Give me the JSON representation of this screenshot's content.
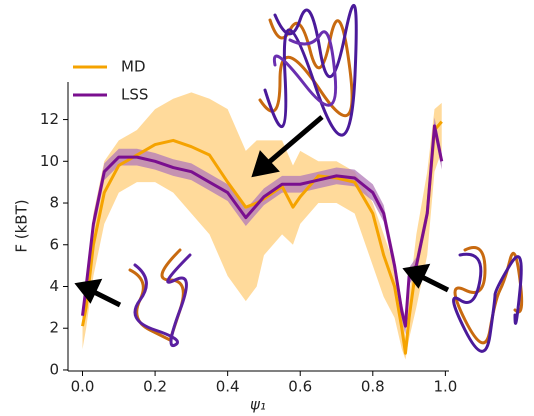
{
  "chart_data": {
    "type": "line",
    "x_label": "ψ₁",
    "y_label": "F (kBT)",
    "x": [
      0,
      0.01,
      0.03,
      0.06,
      0.1,
      0.15,
      0.2,
      0.25,
      0.3,
      0.35,
      0.4,
      0.45,
      0.48,
      0.5,
      0.55,
      0.58,
      0.6,
      0.65,
      0.7,
      0.75,
      0.8,
      0.83,
      0.86,
      0.88,
      0.89,
      0.9,
      0.92,
      0.95,
      0.97,
      0.99
    ],
    "series": [
      {
        "name": "MD",
        "color": "#f5a300",
        "band_color": "#ffd38a",
        "values": [
          2.1,
          3,
          6,
          8.5,
          9.8,
          10.3,
          10.8,
          11,
          10.7,
          10.3,
          9,
          7.8,
          8,
          8.2,
          8.8,
          7.8,
          8.3,
          9.3,
          9.2,
          9,
          7.5,
          5.5,
          4,
          2,
          0.8,
          2.5,
          5,
          7.5,
          11.5,
          11.9
        ],
        "band_low": [
          1.0,
          2.0,
          4.5,
          7,
          8.5,
          9.0,
          9.0,
          8.5,
          7.5,
          6.5,
          4.5,
          3.3,
          4.0,
          5.5,
          6.5,
          6.0,
          7,
          8,
          8,
          7.5,
          5.0,
          3.5,
          2.5,
          1.0,
          0.5,
          1.5,
          3.0,
          5.5,
          9.5,
          10.5
        ],
        "band_high": [
          3.0,
          4.5,
          7.5,
          10.0,
          11.0,
          11.5,
          12.5,
          13.0,
          13.3,
          13.0,
          12.5,
          10.5,
          11.0,
          11.0,
          11.0,
          9.8,
          10.5,
          10.0,
          10.0,
          9.5,
          8.0,
          6.5,
          5.0,
          3.0,
          1.5,
          3.5,
          6.5,
          9.5,
          12.5,
          12.8
        ]
      },
      {
        "name": "LSS",
        "color": "#7a0f8f",
        "band_color": "#b27ab8",
        "values": [
          2.6,
          4.0,
          7.0,
          9.5,
          10.2,
          10.2,
          10.0,
          9.7,
          9.5,
          9.0,
          8.5,
          7.3,
          7.9,
          8.3,
          8.9,
          8.9,
          8.9,
          9.1,
          9.3,
          9.2,
          8.5,
          7.5,
          5.0,
          2.8,
          2.1,
          4.5,
          5.0,
          7.5,
          11.7,
          10.0
        ],
        "band_low": [
          2.2,
          3.6,
          6.6,
          9.1,
          9.8,
          9.8,
          9.6,
          9.3,
          9.1,
          8.6,
          8.1,
          6.9,
          7.5,
          7.9,
          8.5,
          8.5,
          8.5,
          8.7,
          8.9,
          8.8,
          8.1,
          7.1,
          4.6,
          2.4,
          1.7,
          4.1,
          4.6,
          7.1,
          11.3,
          9.6
        ],
        "band_high": [
          3.0,
          4.4,
          7.4,
          9.9,
          10.6,
          10.6,
          10.4,
          10.1,
          9.9,
          9.4,
          8.9,
          7.7,
          8.3,
          8.7,
          9.3,
          9.3,
          9.3,
          9.5,
          9.7,
          9.6,
          8.9,
          7.9,
          5.4,
          3.2,
          2.5,
          4.9,
          5.4,
          7.9,
          12.1,
          10.4
        ]
      }
    ],
    "xlim": [
      -0.04,
      1.01
    ],
    "ylim": [
      -0.05,
      13.8
    ],
    "xticks": [
      {
        "value": 0,
        "label": "0.0"
      },
      0.2,
      0.4,
      0.6,
      0.8,
      {
        "value": 1,
        "label": "1.0"
      }
    ],
    "yticks": [
      0,
      2,
      4,
      6,
      8,
      10,
      12
    ],
    "legend": "upper left"
  }
}
